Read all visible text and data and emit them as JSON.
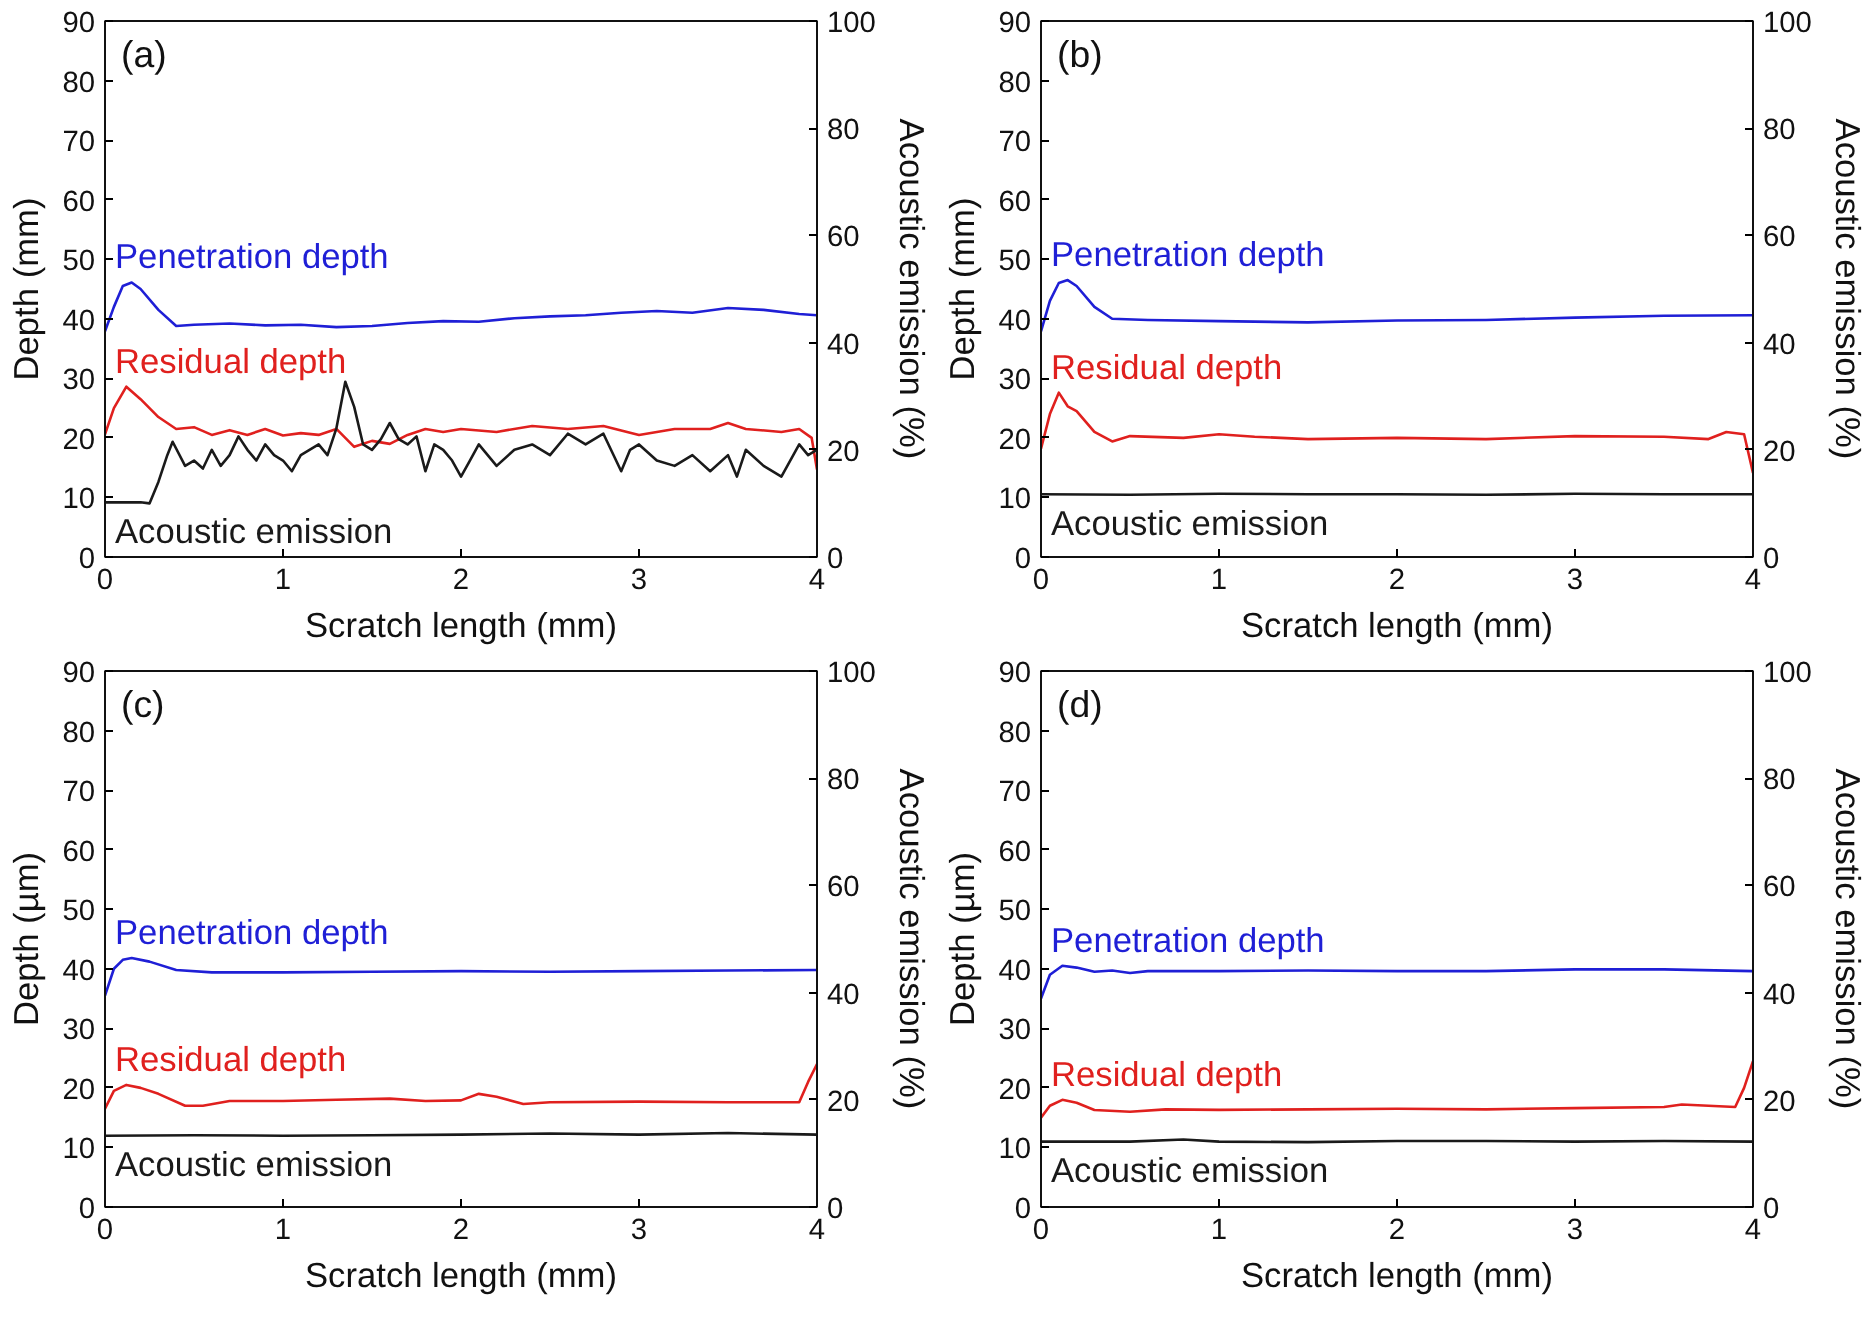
{
  "chart_data": [
    {
      "type": "line",
      "title": "(a)",
      "xlabel": "Scratch length (mm)",
      "ylabel": "Depth (mm)",
      "y2label": "Acoustic emission (%)",
      "xlim": [
        0,
        4
      ],
      "xticks": [
        0,
        1,
        2,
        3,
        4
      ],
      "ylim": [
        0,
        90
      ],
      "yticks": [
        0,
        10,
        20,
        30,
        40,
        50,
        60,
        70,
        80,
        90
      ],
      "y2lim": [
        0,
        100
      ],
      "y2ticks": [
        0,
        20,
        40,
        60,
        80,
        100
      ],
      "grid": false,
      "series": [
        {
          "name": "Penetration depth",
          "color": "#1f1fd6",
          "x": [
            0,
            0.05,
            0.1,
            0.15,
            0.2,
            0.3,
            0.4,
            0.5,
            0.7,
            0.9,
            1.1,
            1.3,
            1.5,
            1.7,
            1.9,
            2.1,
            2.3,
            2.5,
            2.7,
            2.9,
            3.1,
            3.3,
            3.5,
            3.7,
            3.9,
            4.0
          ],
          "values": [
            37.9,
            42,
            45.5,
            46.1,
            45,
            41.5,
            38.8,
            39,
            39.2,
            38.9,
            39,
            38.6,
            38.8,
            39.3,
            39.6,
            39.5,
            40.1,
            40.4,
            40.6,
            41,
            41.3,
            41,
            41.8,
            41.5,
            40.8,
            40.6
          ]
        },
        {
          "name": "Residual depth",
          "color": "#e0201e",
          "x": [
            0,
            0.05,
            0.12,
            0.2,
            0.3,
            0.4,
            0.5,
            0.6,
            0.7,
            0.8,
            0.9,
            1.0,
            1.1,
            1.2,
            1.3,
            1.4,
            1.5,
            1.6,
            1.7,
            1.8,
            1.9,
            2.0,
            2.2,
            2.4,
            2.6,
            2.8,
            3.0,
            3.2,
            3.4,
            3.5,
            3.6,
            3.8,
            3.9,
            3.97,
            4.0
          ],
          "values": [
            20.6,
            25,
            28.6,
            26.5,
            23.5,
            21.5,
            21.8,
            20.5,
            21.3,
            20.5,
            21.5,
            20.4,
            20.8,
            20.5,
            21.5,
            18.5,
            19.5,
            19,
            20.5,
            21.5,
            21,
            21.5,
            21,
            22,
            21.5,
            22,
            20.5,
            21.5,
            21.5,
            22.5,
            21.5,
            21,
            21.5,
            20,
            14.7
          ]
        },
        {
          "name": "Acoustic emission",
          "color": "#1a1a1a",
          "axis": "y2",
          "x": [
            0,
            0.1,
            0.2,
            0.25,
            0.3,
            0.35,
            0.38,
            0.45,
            0.5,
            0.55,
            0.6,
            0.65,
            0.7,
            0.75,
            0.8,
            0.85,
            0.9,
            0.95,
            1.0,
            1.05,
            1.1,
            1.2,
            1.25,
            1.3,
            1.35,
            1.4,
            1.45,
            1.5,
            1.55,
            1.6,
            1.65,
            1.7,
            1.75,
            1.8,
            1.85,
            1.9,
            1.95,
            2.0,
            2.05,
            2.1,
            2.15,
            2.2,
            2.3,
            2.4,
            2.5,
            2.6,
            2.7,
            2.8,
            2.9,
            2.95,
            3.0,
            3.1,
            3.2,
            3.3,
            3.4,
            3.5,
            3.55,
            3.6,
            3.7,
            3.8,
            3.9,
            3.95,
            4.0
          ],
          "values": [
            10.2,
            10.2,
            10.2,
            10,
            14,
            19,
            21.5,
            17,
            18,
            16.5,
            20,
            17,
            19,
            22.5,
            20,
            18,
            21,
            19,
            18,
            16,
            19,
            21,
            19,
            24,
            32.7,
            28,
            21,
            20,
            22,
            25,
            22,
            21,
            22.5,
            16,
            21,
            20,
            18,
            15,
            18,
            21,
            19,
            17,
            20,
            21,
            19,
            23,
            21,
            23,
            16,
            20,
            21,
            18,
            17,
            19,
            16,
            19,
            15,
            20,
            17,
            15,
            21,
            19,
            20
          ]
        }
      ]
    },
    {
      "type": "line",
      "title": "(b)",
      "xlabel": "Scratch length (mm)",
      "ylabel": "Depth (mm)",
      "y2label": "Acoustic emission (%)",
      "xlim": [
        0,
        4
      ],
      "xticks": [
        0,
        1,
        2,
        3,
        4
      ],
      "ylim": [
        0,
        90
      ],
      "yticks": [
        0,
        10,
        20,
        30,
        40,
        50,
        60,
        70,
        80,
        90
      ],
      "y2lim": [
        0,
        100
      ],
      "y2ticks": [
        0,
        20,
        40,
        60,
        80,
        100
      ],
      "grid": false,
      "series": [
        {
          "name": "Penetration depth",
          "color": "#1f1fd6",
          "x": [
            0,
            0.05,
            0.1,
            0.15,
            0.2,
            0.3,
            0.4,
            0.6,
            1.0,
            1.5,
            2.0,
            2.5,
            3.0,
            3.5,
            4.0
          ],
          "values": [
            37.9,
            43,
            46,
            46.5,
            45.5,
            42,
            40,
            39.8,
            39.6,
            39.4,
            39.7,
            39.8,
            40.2,
            40.5,
            40.6
          ]
        },
        {
          "name": "Residual depth",
          "color": "#e0201e",
          "x": [
            0,
            0.05,
            0.1,
            0.15,
            0.2,
            0.3,
            0.4,
            0.5,
            0.8,
            1.0,
            1.2,
            1.5,
            2.0,
            2.5,
            3.0,
            3.5,
            3.75,
            3.85,
            3.95,
            4.0
          ],
          "values": [
            18.2,
            24,
            27.6,
            25.3,
            24.5,
            21,
            19.4,
            20.3,
            20,
            20.6,
            20.2,
            19.8,
            20,
            19.8,
            20.3,
            20.2,
            19.8,
            21,
            20.6,
            14.1
          ]
        },
        {
          "name": "Acoustic emission",
          "color": "#1a1a1a",
          "axis": "y2",
          "x": [
            0,
            0.5,
            1.0,
            1.5,
            2.0,
            2.5,
            3.0,
            3.5,
            4.0
          ],
          "values": [
            11.7,
            11.6,
            11.8,
            11.7,
            11.7,
            11.6,
            11.8,
            11.7,
            11.7
          ]
        }
      ]
    },
    {
      "type": "line",
      "title": "(c)",
      "xlabel": "Scratch length (mm)",
      "ylabel": "Depth (µm)",
      "y2label": "Acoustic emission (%)",
      "xlim": [
        0,
        4
      ],
      "xticks": [
        0,
        1,
        2,
        3,
        4
      ],
      "ylim": [
        0,
        90
      ],
      "yticks": [
        0,
        10,
        20,
        30,
        40,
        50,
        60,
        70,
        80,
        90
      ],
      "y2lim": [
        0,
        100
      ],
      "y2ticks": [
        0,
        20,
        40,
        60,
        80,
        100
      ],
      "grid": false,
      "series": [
        {
          "name": "Penetration depth",
          "color": "#1f1fd6",
          "x": [
            0,
            0.05,
            0.1,
            0.15,
            0.25,
            0.4,
            0.6,
            1.0,
            1.5,
            2.0,
            2.5,
            3.0,
            3.5,
            4.0
          ],
          "values": [
            35.5,
            40,
            41.5,
            41.8,
            41.2,
            39.8,
            39.4,
            39.4,
            39.5,
            39.6,
            39.5,
            39.6,
            39.7,
            39.8
          ]
        },
        {
          "name": "Residual depth",
          "color": "#e0201e",
          "x": [
            0,
            0.05,
            0.12,
            0.2,
            0.3,
            0.45,
            0.55,
            0.7,
            1.0,
            1.3,
            1.6,
            1.8,
            2.0,
            2.1,
            2.2,
            2.35,
            2.5,
            3.0,
            3.5,
            3.9,
            3.95,
            4.0
          ],
          "values": [
            16.5,
            19.5,
            20.5,
            20,
            19,
            17,
            17,
            17.8,
            17.8,
            18,
            18.2,
            17.8,
            17.9,
            19,
            18.5,
            17.3,
            17.6,
            17.7,
            17.6,
            17.6,
            21,
            24
          ]
        },
        {
          "name": "Acoustic emission",
          "color": "#1a1a1a",
          "axis": "y2",
          "x": [
            0,
            0.5,
            1.0,
            1.5,
            2.0,
            2.5,
            3.0,
            3.5,
            4.0
          ],
          "values": [
            13.3,
            13.4,
            13.3,
            13.4,
            13.5,
            13.7,
            13.5,
            13.8,
            13.5
          ]
        }
      ]
    },
    {
      "type": "line",
      "title": "(d)",
      "xlabel": "Scratch length (mm)",
      "ylabel": "Depth (µm)",
      "y2label": "Acoustic emission (%)",
      "xlim": [
        0,
        4
      ],
      "xticks": [
        0,
        1,
        2,
        3,
        4
      ],
      "ylim": [
        0,
        90
      ],
      "yticks": [
        0,
        10,
        20,
        30,
        40,
        50,
        60,
        70,
        80,
        90
      ],
      "y2lim": [
        0,
        100
      ],
      "y2ticks": [
        0,
        20,
        40,
        60,
        80,
        100
      ],
      "grid": false,
      "series": [
        {
          "name": "Penetration depth",
          "color": "#1f1fd6",
          "x": [
            0,
            0.05,
            0.12,
            0.2,
            0.3,
            0.4,
            0.5,
            0.6,
            1.0,
            1.5,
            2.0,
            2.5,
            3.0,
            3.5,
            4.0
          ],
          "values": [
            35,
            39,
            40.5,
            40.2,
            39.5,
            39.7,
            39.3,
            39.6,
            39.6,
            39.7,
            39.6,
            39.6,
            39.9,
            39.9,
            39.6
          ]
        },
        {
          "name": "Residual depth",
          "color": "#e0201e",
          "x": [
            0,
            0.05,
            0.12,
            0.2,
            0.3,
            0.5,
            0.7,
            1.0,
            1.5,
            2.0,
            2.5,
            3.0,
            3.5,
            3.6,
            3.9,
            3.95,
            4.0
          ],
          "values": [
            15,
            17,
            18,
            17.5,
            16.3,
            16,
            16.4,
            16.3,
            16.4,
            16.5,
            16.4,
            16.6,
            16.8,
            17.2,
            16.8,
            20,
            24.5
          ]
        },
        {
          "name": "Acoustic emission",
          "color": "#1a1a1a",
          "axis": "y2",
          "x": [
            0,
            0.5,
            0.8,
            1.0,
            1.5,
            2.0,
            2.5,
            3.0,
            3.5,
            4.0
          ],
          "values": [
            12.2,
            12.2,
            12.6,
            12.2,
            12.1,
            12.3,
            12.3,
            12.2,
            12.3,
            12.2
          ]
        }
      ]
    }
  ]
}
